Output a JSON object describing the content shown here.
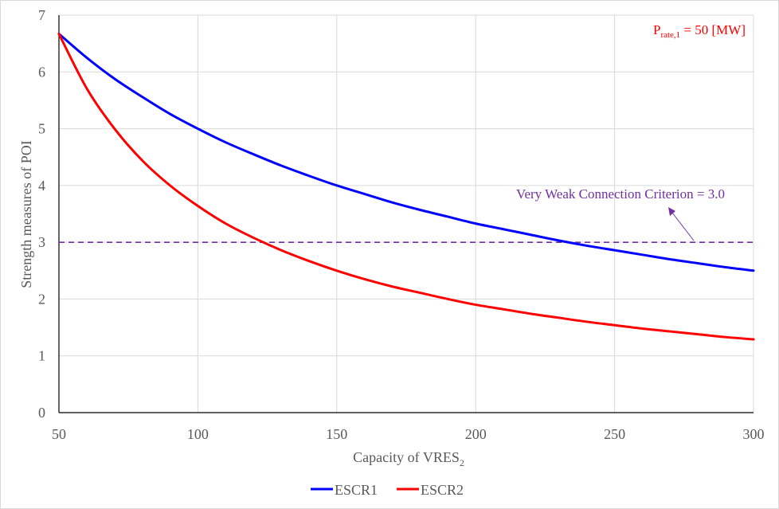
{
  "chart_data": {
    "type": "line",
    "xlabel": "Capacity  of VRES",
    "xlabel_sub": "2",
    "ylabel": "Strength measures of POI",
    "xlim": [
      50,
      300
    ],
    "ylim": [
      0,
      7
    ],
    "xticks": [
      "50",
      "100",
      "150",
      "200",
      "250",
      "300"
    ],
    "yticks": [
      "0",
      "1",
      "2",
      "3",
      "4",
      "5",
      "6",
      "7"
    ],
    "grid": true,
    "legend_position": "bottom",
    "series": [
      {
        "name": "ESCR1",
        "color": "#0000ff",
        "x": [
          50,
          60,
          70,
          80,
          90,
          100,
          110,
          120,
          130,
          140,
          150,
          160,
          170,
          180,
          190,
          200,
          210,
          220,
          230,
          240,
          250,
          260,
          270,
          280,
          290,
          300
        ],
        "y": [
          6.67,
          6.25,
          5.88,
          5.56,
          5.26,
          5.0,
          4.76,
          4.55,
          4.35,
          4.17,
          4.0,
          3.85,
          3.7,
          3.57,
          3.45,
          3.33,
          3.23,
          3.13,
          3.03,
          2.94,
          2.86,
          2.78,
          2.7,
          2.63,
          2.56,
          2.5
        ]
      },
      {
        "name": "ESCR2",
        "color": "#ff0000",
        "x": [
          50,
          60,
          70,
          80,
          90,
          100,
          110,
          120,
          130,
          140,
          150,
          160,
          170,
          180,
          190,
          200,
          210,
          220,
          230,
          240,
          250,
          260,
          270,
          280,
          290,
          300
        ],
        "y": [
          6.67,
          5.71,
          5.0,
          4.44,
          4.0,
          3.64,
          3.33,
          3.08,
          2.86,
          2.67,
          2.5,
          2.35,
          2.22,
          2.11,
          2.0,
          1.9,
          1.82,
          1.74,
          1.67,
          1.6,
          1.54,
          1.48,
          1.43,
          1.38,
          1.33,
          1.29
        ]
      }
    ],
    "reference_line": {
      "y": 3.0,
      "color": "#7030a0",
      "style": "dashed"
    },
    "annotations": {
      "criterion": {
        "text": "Very Weak Connection Criterion = 3.0",
        "color": "#7030a0"
      },
      "rating": {
        "main": "P",
        "sub": "rate,1",
        "rest": " = 50 [MW]",
        "color": "#ff0000"
      }
    }
  }
}
